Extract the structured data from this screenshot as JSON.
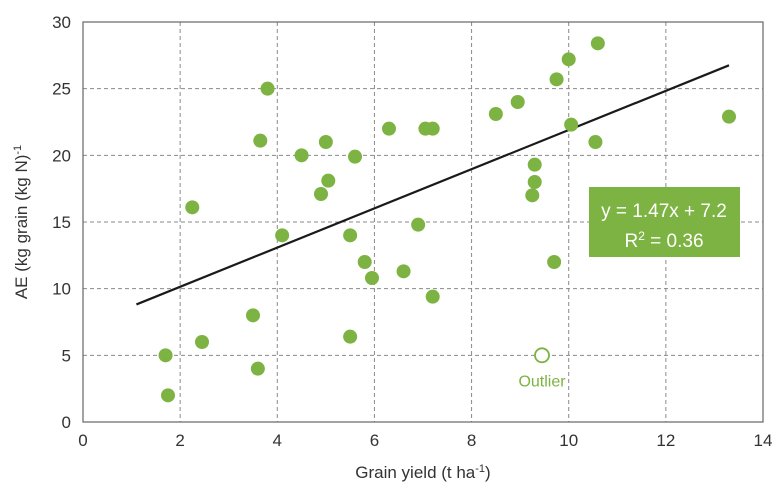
{
  "chart_data": {
    "type": "scatter",
    "xlabel": {
      "main": "Grain yield (t ha",
      "sup": "-1",
      "close": ")"
    },
    "ylabel": {
      "main": "AE (kg grain (kg N)",
      "sup": "-1"
    },
    "xlim": [
      0,
      14
    ],
    "ylim": [
      0,
      30
    ],
    "xticks": [
      0,
      2,
      4,
      6,
      8,
      10,
      12,
      14
    ],
    "yticks": [
      0,
      5,
      10,
      15,
      20,
      25,
      30
    ],
    "grid": true,
    "grid_style": "dashed",
    "point_color": "#7cb342",
    "points": [
      {
        "x": 1.7,
        "y": 5.0
      },
      {
        "x": 1.75,
        "y": 2.0
      },
      {
        "x": 2.25,
        "y": 16.1
      },
      {
        "x": 2.45,
        "y": 6.0
      },
      {
        "x": 3.5,
        "y": 8.0
      },
      {
        "x": 3.6,
        "y": 4.0
      },
      {
        "x": 3.65,
        "y": 21.1
      },
      {
        "x": 3.8,
        "y": 25.0
      },
      {
        "x": 4.1,
        "y": 14.0
      },
      {
        "x": 4.5,
        "y": 20.0
      },
      {
        "x": 4.9,
        "y": 17.1
      },
      {
        "x": 5.0,
        "y": 21.0
      },
      {
        "x": 5.05,
        "y": 18.1
      },
      {
        "x": 5.5,
        "y": 14.0
      },
      {
        "x": 5.5,
        "y": 6.4
      },
      {
        "x": 5.6,
        "y": 19.9
      },
      {
        "x": 5.8,
        "y": 12.0
      },
      {
        "x": 5.95,
        "y": 10.8
      },
      {
        "x": 6.3,
        "y": 22.0
      },
      {
        "x": 6.6,
        "y": 11.3
      },
      {
        "x": 6.9,
        "y": 14.8
      },
      {
        "x": 7.05,
        "y": 22.0
      },
      {
        "x": 7.2,
        "y": 22.0
      },
      {
        "x": 7.2,
        "y": 9.4
      },
      {
        "x": 8.5,
        "y": 23.1
      },
      {
        "x": 8.95,
        "y": 24.0
      },
      {
        "x": 9.25,
        "y": 17.0
      },
      {
        "x": 9.3,
        "y": 19.3
      },
      {
        "x": 9.3,
        "y": 18.0
      },
      {
        "x": 9.7,
        "y": 12.0
      },
      {
        "x": 9.75,
        "y": 25.7
      },
      {
        "x": 10.0,
        "y": 27.2
      },
      {
        "x": 10.05,
        "y": 22.3
      },
      {
        "x": 10.55,
        "y": 21.0
      },
      {
        "x": 10.6,
        "y": 28.4
      },
      {
        "x": 13.3,
        "y": 22.9
      }
    ],
    "outlier": {
      "x": 9.45,
      "y": 5.0,
      "label": "Outlier"
    },
    "trendline": {
      "slope": 1.47,
      "intercept": 7.2,
      "x_range": [
        1.1,
        13.3
      ],
      "color": "#1a1a1a"
    },
    "equation_box": {
      "line1": "y = 1.47x + 7.2",
      "line2_main": "R",
      "line2_sup": "2",
      "line2_rest": " = 0.36",
      "fill": "#7cb342"
    }
  }
}
